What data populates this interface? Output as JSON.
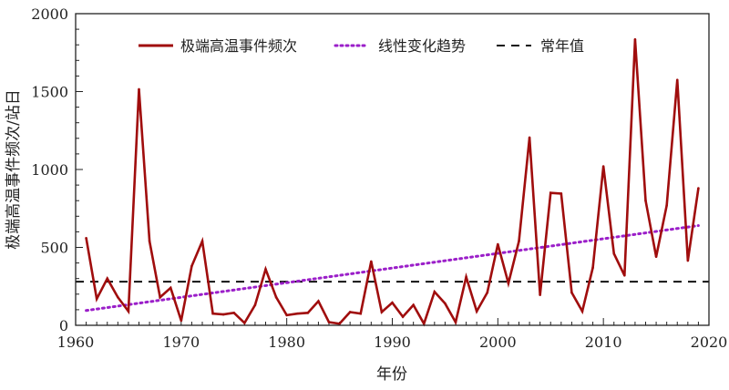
{
  "chart_data": {
    "type": "line",
    "xlabel": "年份",
    "ylabel": "极端高温事件频次/站日",
    "xlim": [
      1960,
      2020
    ],
    "ylim": [
      0,
      2000
    ],
    "xticks": [
      1960,
      1970,
      1980,
      1990,
      2000,
      2010,
      2020
    ],
    "yticks": [
      0,
      500,
      1000,
      1500,
      2000
    ],
    "grid": false,
    "legend_position": "top",
    "x": [
      1961,
      1962,
      1963,
      1964,
      1965,
      1966,
      1967,
      1968,
      1969,
      1970,
      1971,
      1972,
      1973,
      1974,
      1975,
      1976,
      1977,
      1978,
      1979,
      1980,
      1981,
      1982,
      1983,
      1984,
      1985,
      1986,
      1987,
      1988,
      1989,
      1990,
      1991,
      1992,
      1993,
      1994,
      1995,
      1996,
      1997,
      1998,
      1999,
      2000,
      2001,
      2002,
      2003,
      2004,
      2005,
      2006,
      2007,
      2008,
      2009,
      2010,
      2011,
      2012,
      2013,
      2014,
      2015,
      2016,
      2017,
      2018,
      2019
    ],
    "series": [
      {
        "name": "极端高温事件频次",
        "style": "solid",
        "color": "#a00d0d",
        "values": [
          560,
          170,
          300,
          180,
          90,
          1515,
          540,
          180,
          240,
          30,
          380,
          540,
          75,
          70,
          80,
          15,
          130,
          360,
          180,
          65,
          75,
          80,
          155,
          20,
          10,
          85,
          75,
          410,
          85,
          145,
          55,
          130,
          10,
          215,
          140,
          20,
          310,
          90,
          210,
          520,
          270,
          540,
          1205,
          195,
          850,
          845,
          210,
          90,
          370,
          1020,
          460,
          320,
          1835,
          800,
          440,
          770,
          1575,
          415,
          880
        ]
      },
      {
        "name": "线性变化趋势",
        "style": "dotted",
        "color": "#9b1fc9",
        "start": [
          1961,
          95
        ],
        "end": [
          2019,
          640
        ]
      },
      {
        "name": "常年值",
        "style": "dashed",
        "color": "#111111",
        "value": 280
      }
    ]
  }
}
